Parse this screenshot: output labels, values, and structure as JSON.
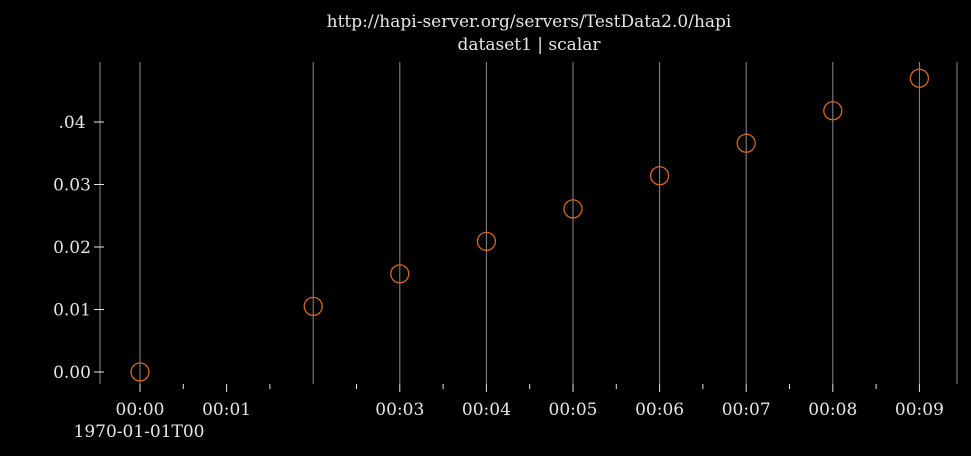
{
  "title": "http://hapi-server.org/servers/TestData2.0/hapi",
  "subtitle": "dataset1 | scalar",
  "chart_data": {
    "type": "scatter",
    "title": "http://hapi-server.org/servers/TestData2.0/hapi",
    "subtitle": "dataset1 | scalar",
    "xlabel": "",
    "ylabel": "",
    "x_reference": "1970-01-01T00",
    "x_tick_labels": [
      "00:00",
      "00:01",
      "00:03",
      "00:04",
      "00:05",
      "00:06",
      "00:07",
      "00:08",
      "00:09"
    ],
    "y_tick_labels": [
      "0.00",
      "0.01",
      "0.02",
      "0.03",
      ".04"
    ],
    "xlim": [
      "1970-01-01T00:00",
      "1970-01-01T00:09:20"
    ],
    "ylim": [
      -0.0015,
      0.0495
    ],
    "grid": true,
    "series": [
      {
        "x": [
          "00:00",
          "00:02",
          "00:03",
          "00:04",
          "00:05",
          "00:06",
          "00:07",
          "00:08",
          "00:09"
        ],
        "y": [
          0.0,
          0.0105,
          0.0157,
          0.0209,
          0.0261,
          0.0314,
          0.0366,
          0.0418,
          0.047
        ],
        "color": "#d2691e"
      }
    ]
  },
  "colors": {
    "background": "#000000",
    "marker": "#d2691e",
    "text": "#e6e6e6",
    "gridline": "#8c8c8c"
  }
}
